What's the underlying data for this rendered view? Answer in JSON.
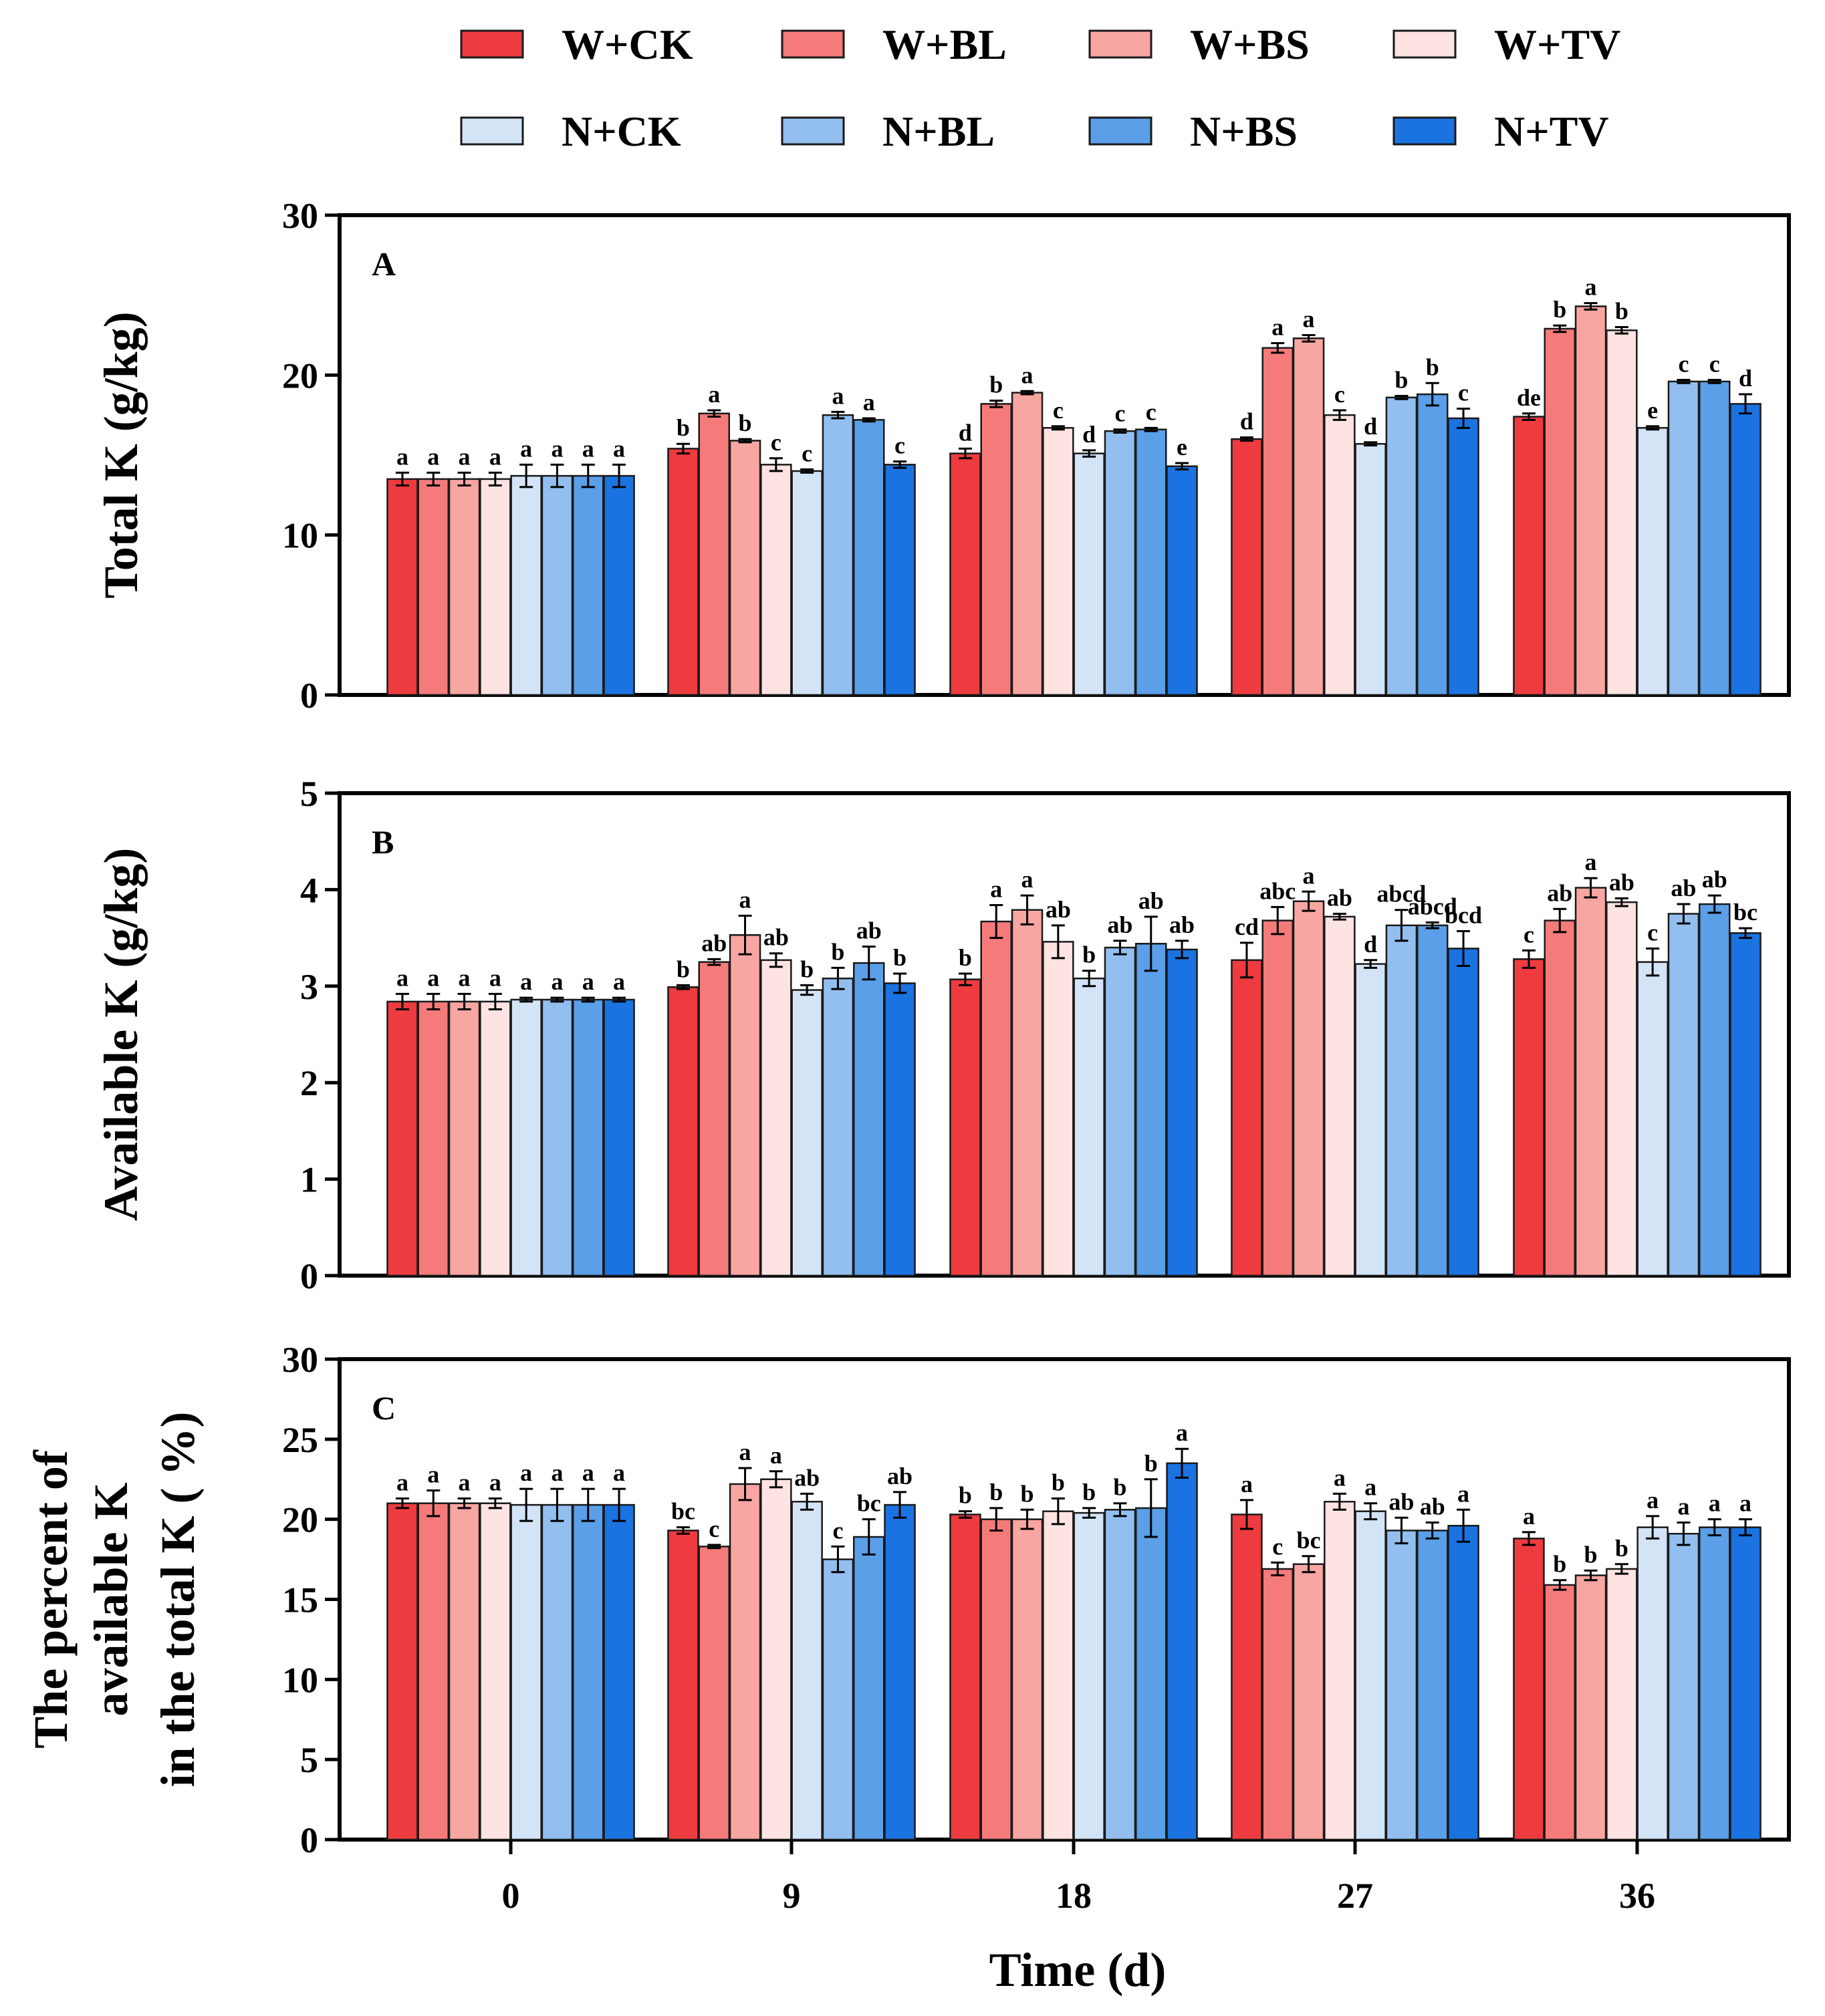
{
  "figure": {
    "xlabel": "Time (d)",
    "categories": [
      "0",
      "9",
      "18",
      "27",
      "36"
    ]
  },
  "legend": [
    {
      "label": "W+CK",
      "color": "#ee3b3f"
    },
    {
      "label": "W+BL",
      "color": "#f57b7b"
    },
    {
      "label": "W+BS",
      "color": "#f8a6a2"
    },
    {
      "label": "W+TV",
      "color": "#fde3e1"
    },
    {
      "label": "N+CK",
      "color": "#d4e4f7"
    },
    {
      "label": "N+BL",
      "color": "#93bff0"
    },
    {
      "label": "N+BS",
      "color": "#5a9fe8"
    },
    {
      "label": "N+TV",
      "color": "#1a73e1"
    }
  ],
  "chart_data": [
    {
      "type": "bar",
      "panel": "A",
      "ylabel": "Total K (g/kg)",
      "ylim": [
        0,
        30
      ],
      "yticks": [
        0,
        10,
        20,
        30
      ],
      "categories": [
        "0",
        "9",
        "18",
        "27",
        "36"
      ],
      "series": [
        {
          "name": "W+CK",
          "values": [
            13.5,
            15.4,
            15.1,
            16.0,
            17.4
          ],
          "errors": [
            0.4,
            0.3,
            0.3,
            0.1,
            0.2
          ],
          "letters": [
            "a",
            "b",
            "d",
            "d",
            "de"
          ]
        },
        {
          "name": "W+BL",
          "values": [
            13.5,
            17.6,
            18.2,
            21.7,
            22.9
          ],
          "errors": [
            0.4,
            0.2,
            0.2,
            0.3,
            0.2
          ],
          "letters": [
            "a",
            "a",
            "b",
            "a",
            "b"
          ]
        },
        {
          "name": "W+BS",
          "values": [
            13.5,
            15.9,
            18.9,
            22.3,
            24.3
          ],
          "errors": [
            0.4,
            0.1,
            0.1,
            0.2,
            0.2
          ],
          "letters": [
            "a",
            "b",
            "a",
            "a",
            "a"
          ]
        },
        {
          "name": "W+TV",
          "values": [
            13.5,
            14.4,
            16.7,
            17.5,
            22.8
          ],
          "errors": [
            0.4,
            0.4,
            0.1,
            0.3,
            0.2
          ],
          "letters": [
            "a",
            "c",
            "c",
            "c",
            "b"
          ]
        },
        {
          "name": "N+CK",
          "values": [
            13.7,
            14.0,
            15.1,
            15.7,
            16.7
          ],
          "errors": [
            0.7,
            0.1,
            0.2,
            0.1,
            0.1
          ],
          "letters": [
            "a",
            "c",
            "d",
            "d",
            "e"
          ]
        },
        {
          "name": "N+BL",
          "values": [
            13.7,
            17.5,
            16.5,
            18.6,
            19.6
          ],
          "errors": [
            0.7,
            0.2,
            0.1,
            0.1,
            0.1
          ],
          "letters": [
            "a",
            "a",
            "c",
            "b",
            "c"
          ]
        },
        {
          "name": "N+BS",
          "values": [
            13.7,
            17.2,
            16.6,
            18.8,
            19.6
          ],
          "errors": [
            0.7,
            0.1,
            0.1,
            0.7,
            0.1
          ],
          "letters": [
            "a",
            "a",
            "c",
            "b",
            "c"
          ]
        },
        {
          "name": "N+TV",
          "values": [
            13.7,
            14.4,
            14.3,
            17.3,
            18.2
          ],
          "errors": [
            0.7,
            0.2,
            0.2,
            0.6,
            0.6
          ],
          "letters": [
            "a",
            "c",
            "e",
            "c",
            "d"
          ]
        }
      ]
    },
    {
      "type": "bar",
      "panel": "B",
      "ylabel": "Available K (g/kg)",
      "ylim": [
        0,
        5
      ],
      "yticks": [
        0,
        1,
        2,
        3,
        4,
        5
      ],
      "categories": [
        "0",
        "9",
        "18",
        "27",
        "36"
      ],
      "series": [
        {
          "name": "W+CK",
          "values": [
            2.84,
            2.99,
            3.07,
            3.27,
            3.28
          ],
          "errors": [
            0.08,
            0.02,
            0.06,
            0.18,
            0.09
          ],
          "letters": [
            "a",
            "b",
            "b",
            "cd",
            "c"
          ]
        },
        {
          "name": "W+BL",
          "values": [
            2.84,
            3.25,
            3.67,
            3.68,
            3.68
          ],
          "errors": [
            0.08,
            0.03,
            0.17,
            0.14,
            0.12
          ],
          "letters": [
            "a",
            "ab",
            "a",
            "abc",
            "ab"
          ]
        },
        {
          "name": "W+BS",
          "values": [
            2.84,
            3.53,
            3.79,
            3.88,
            4.02
          ],
          "errors": [
            0.08,
            0.2,
            0.15,
            0.1,
            0.1
          ],
          "letters": [
            "a",
            "a",
            "a",
            "a",
            "a"
          ]
        },
        {
          "name": "W+TV",
          "values": [
            2.84,
            3.27,
            3.46,
            3.72,
            3.87
          ],
          "errors": [
            0.08,
            0.07,
            0.17,
            0.03,
            0.04
          ],
          "letters": [
            "a",
            "ab",
            "ab",
            "ab",
            "ab"
          ]
        },
        {
          "name": "N+CK",
          "values": [
            2.86,
            2.96,
            3.08,
            3.23,
            3.25
          ],
          "errors": [
            0.02,
            0.05,
            0.08,
            0.04,
            0.14
          ],
          "letters": [
            "a",
            "b",
            "b",
            "d",
            "c"
          ]
        },
        {
          "name": "N+BL",
          "values": [
            2.86,
            3.08,
            3.4,
            3.63,
            3.75
          ],
          "errors": [
            0.02,
            0.11,
            0.07,
            0.16,
            0.1
          ],
          "letters": [
            "a",
            "b",
            "ab",
            "abcd",
            "ab"
          ]
        },
        {
          "name": "N+BS",
          "values": [
            2.86,
            3.24,
            3.44,
            3.63,
            3.85
          ],
          "errors": [
            0.02,
            0.17,
            0.28,
            0.03,
            0.09
          ],
          "letters": [
            "a",
            "ab",
            "ab",
            "abcd",
            "ab"
          ]
        },
        {
          "name": "N+TV",
          "values": [
            2.86,
            3.03,
            3.38,
            3.39,
            3.55
          ],
          "errors": [
            0.02,
            0.1,
            0.09,
            0.18,
            0.05
          ],
          "letters": [
            "a",
            "b",
            "ab",
            "bcd",
            "bc"
          ]
        }
      ]
    },
    {
      "type": "bar",
      "panel": "C",
      "ylabel": "The percent of available K in the total K ( %)",
      "ylabel_lines": [
        "The percent of",
        "available K",
        "in the total K ( %)"
      ],
      "ylim": [
        0,
        30
      ],
      "yticks": [
        0,
        5,
        10,
        15,
        20,
        25,
        30
      ],
      "categories": [
        "0",
        "9",
        "18",
        "27",
        "36"
      ],
      "series": [
        {
          "name": "W+CK",
          "values": [
            21.0,
            19.3,
            20.3,
            20.3,
            18.8
          ],
          "errors": [
            0.3,
            0.2,
            0.2,
            0.9,
            0.4
          ],
          "letters": [
            "a",
            "bc",
            "b",
            "a",
            "a"
          ]
        },
        {
          "name": "W+BL",
          "values": [
            21.0,
            18.3,
            20.0,
            16.9,
            15.9
          ],
          "errors": [
            0.8,
            0.1,
            0.7,
            0.4,
            0.3
          ],
          "letters": [
            "a",
            "c",
            "b",
            "c",
            "b"
          ]
        },
        {
          "name": "W+BS",
          "values": [
            21.0,
            22.2,
            20.0,
            17.2,
            16.5
          ],
          "errors": [
            0.3,
            1.0,
            0.6,
            0.5,
            0.3
          ],
          "letters": [
            "a",
            "a",
            "b",
            "bc",
            "b"
          ]
        },
        {
          "name": "W+TV",
          "values": [
            21.0,
            22.5,
            20.5,
            21.1,
            16.9
          ],
          "errors": [
            0.3,
            0.5,
            0.8,
            0.5,
            0.3
          ],
          "letters": [
            "a",
            "a",
            "b",
            "a",
            "b"
          ]
        },
        {
          "name": "N+CK",
          "values": [
            20.9,
            21.1,
            20.4,
            20.5,
            19.5
          ],
          "errors": [
            1.0,
            0.5,
            0.3,
            0.5,
            0.7
          ],
          "letters": [
            "a",
            "ab",
            "b",
            "a",
            "a"
          ]
        },
        {
          "name": "N+BL",
          "values": [
            20.9,
            17.5,
            20.6,
            19.3,
            19.1
          ],
          "errors": [
            1.0,
            0.8,
            0.4,
            0.8,
            0.7
          ],
          "letters": [
            "a",
            "c",
            "b",
            "ab",
            "a"
          ]
        },
        {
          "name": "N+BS",
          "values": [
            20.9,
            18.9,
            20.7,
            19.3,
            19.5
          ],
          "errors": [
            1.0,
            1.1,
            1.8,
            0.5,
            0.5
          ],
          "letters": [
            "a",
            "bc",
            "b",
            "ab",
            "a"
          ]
        },
        {
          "name": "N+TV",
          "values": [
            20.9,
            20.9,
            23.5,
            19.6,
            19.5
          ],
          "errors": [
            1.0,
            0.8,
            0.9,
            1.0,
            0.5
          ],
          "letters": [
            "a",
            "ab",
            "a",
            "a",
            "a"
          ]
        }
      ]
    }
  ]
}
